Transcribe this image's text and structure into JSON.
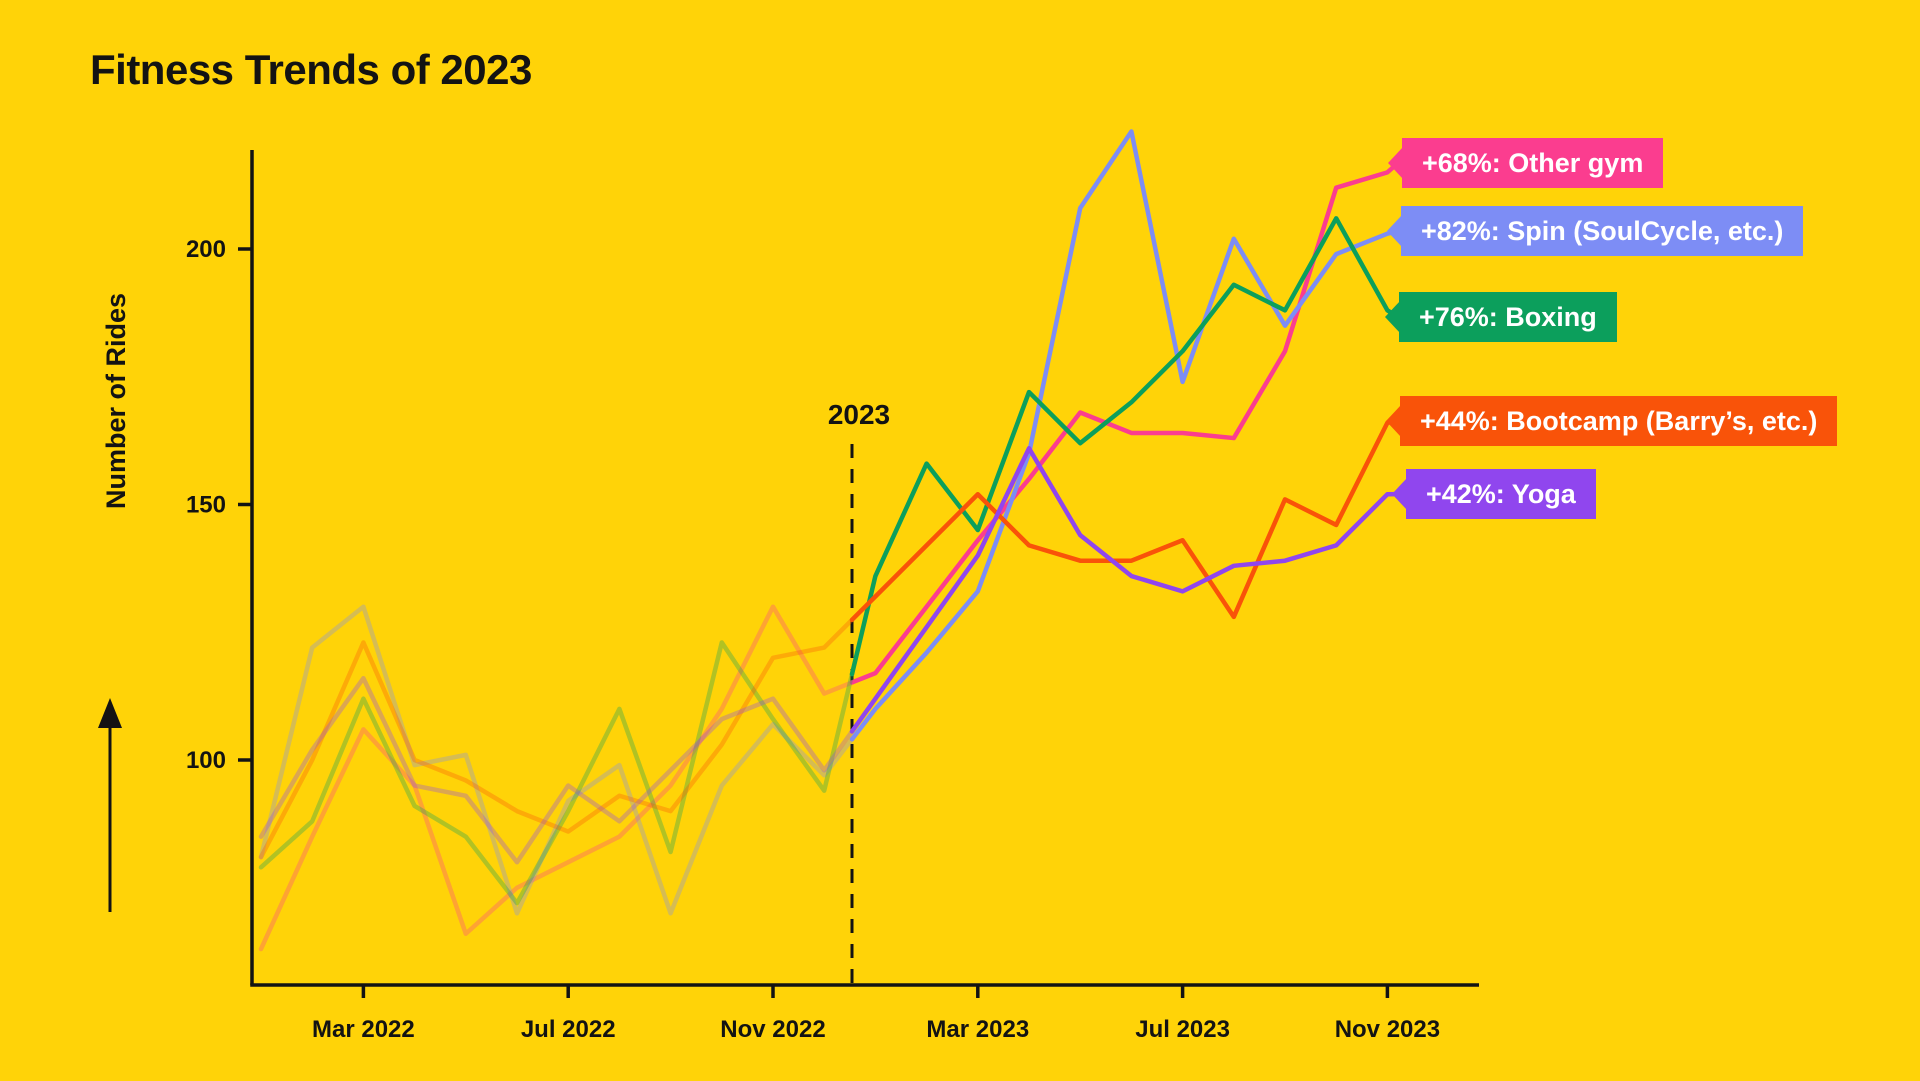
{
  "title": "Fitness Trends of 2023",
  "colors": {
    "background": "#FFD308",
    "text": "#131313",
    "axis": "#131313"
  },
  "chart_data": {
    "type": "line",
    "title": "Fitness Trends of 2023",
    "ylabel": "Number of Rides",
    "x": [
      "Jan 2022",
      "Feb 2022",
      "Mar 2022",
      "Apr 2022",
      "May 2022",
      "Jun 2022",
      "Jul 2022",
      "Aug 2022",
      "Sep 2022",
      "Oct 2022",
      "Nov 2022",
      "Dec 2022",
      "Jan 2023",
      "Feb 2023",
      "Mar 2023",
      "Apr 2023",
      "May 2023",
      "Jun 2023",
      "Jul 2023",
      "Aug 2023",
      "Sep 2023",
      "Oct 2023",
      "Nov 2023"
    ],
    "x_tick_labels": [
      "Mar 2022",
      "Jul 2022",
      "Nov 2022",
      "Mar 2023",
      "Jul 2023",
      "Nov 2023"
    ],
    "x_tick_month_indices": [
      2,
      6,
      10,
      14,
      18,
      22
    ],
    "y_ticks": [
      100,
      150,
      200
    ],
    "ylim": [
      55,
      230
    ],
    "grid": false,
    "legend_position": "right-callouts",
    "divider": {
      "label": "2023",
      "between": [
        "Dec 2022",
        "Jan 2023"
      ]
    },
    "style_note": "2022 segment drawn faded, 2023 segment drawn solid",
    "series": [
      {
        "name": "Other gym",
        "label": "+68%: Other gym",
        "change_pct": "+68%",
        "color": "#FB3D8F",
        "values": [
          63,
          85,
          106,
          95,
          66,
          75,
          80,
          85,
          95,
          110,
          130,
          113,
          117,
          130,
          143,
          155,
          168,
          164,
          164,
          163,
          180,
          212,
          215
        ]
      },
      {
        "name": "Spin (SoulCycle, etc.)",
        "label": "+82%: Spin (SoulCycle, etc.)",
        "change_pct": "+82%",
        "color": "#7D8DF5",
        "values": [
          81,
          122,
          130,
          99,
          101,
          70,
          92,
          99,
          70,
          95,
          107,
          97,
          110,
          121,
          133,
          160,
          208,
          223,
          174,
          202,
          185,
          199,
          203
        ]
      },
      {
        "name": "Boxing",
        "label": "+76%: Boxing",
        "change_pct": "+76%",
        "color": "#0C9F5C",
        "values": [
          79,
          88,
          112,
          91,
          85,
          72,
          90,
          110,
          82,
          123,
          108,
          94,
          136,
          158,
          145,
          172,
          162,
          170,
          180,
          193,
          188,
          206,
          188
        ]
      },
      {
        "name": "Bootcamp (Barry’s, etc.)",
        "label": "+44%: Bootcamp (Barry’s, etc.)",
        "change_pct": "+44%",
        "color": "#F95309",
        "values": [
          81,
          100,
          123,
          100,
          96,
          90,
          86,
          93,
          90,
          103,
          120,
          122,
          132,
          142,
          152,
          142,
          139,
          139,
          143,
          128,
          151,
          146,
          166
        ]
      },
      {
        "name": "Yoga",
        "label": "+42%: Yoga",
        "change_pct": "+42%",
        "color": "#9046EE",
        "values": [
          85,
          102,
          116,
          95,
          93,
          80,
          95,
          88,
          98,
          108,
          112,
          98,
          112,
          126,
          140,
          161,
          144,
          136,
          133,
          138,
          139,
          142,
          152
        ]
      }
    ]
  }
}
